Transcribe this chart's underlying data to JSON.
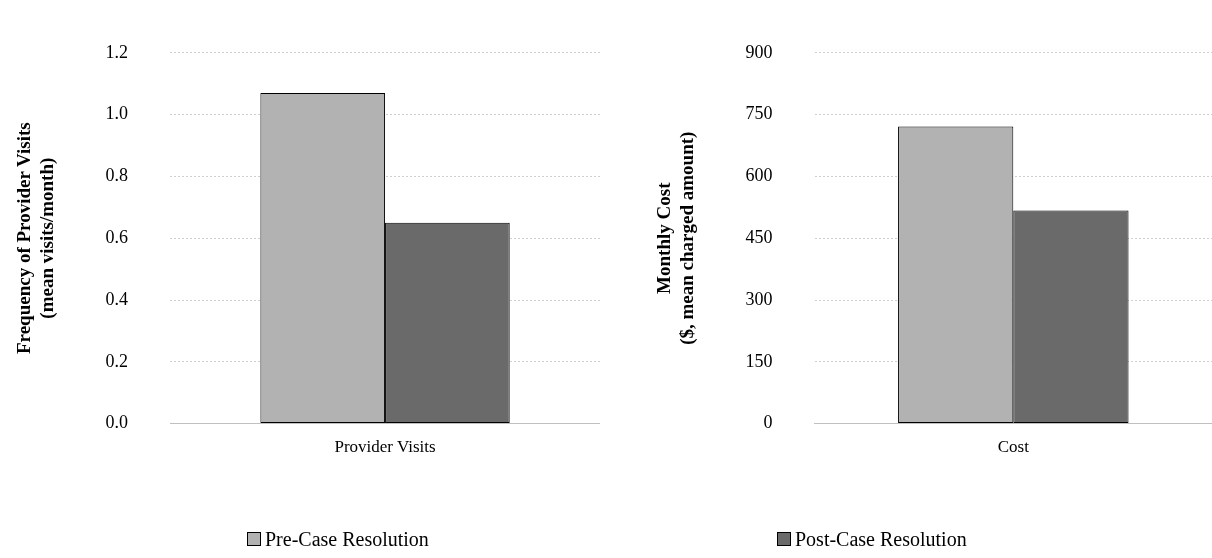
{
  "chart_data": [
    {
      "type": "bar",
      "ylabel": "Frequency of Provider Visits\n(mean visits/month)",
      "categories": [
        "Provider Visits"
      ],
      "series": [
        {
          "name": "Pre-Case Resolution",
          "color": "#b2b2b2",
          "values": [
            1.07
          ]
        },
        {
          "name": "Post-Case Resolution",
          "color": "#6a6a6a",
          "values": [
            0.65
          ]
        }
      ],
      "ylim": [
        0,
        1.2
      ],
      "yticks": [
        {
          "value": 0,
          "label": "0.0"
        },
        {
          "value": 0.2,
          "label": "0.2"
        },
        {
          "value": 0.4,
          "label": "0.4"
        },
        {
          "value": 0.6,
          "label": "0.6"
        },
        {
          "value": 0.8,
          "label": "0.8"
        },
        {
          "value": 1,
          "label": "1.0"
        },
        {
          "value": 1.2,
          "label": "1.2"
        }
      ],
      "grid": "y",
      "legend": "bottom"
    },
    {
      "type": "bar",
      "ylabel": "Monthly Cost\n($, mean charged amount)",
      "categories": [
        "Cost"
      ],
      "series": [
        {
          "color": "#b2b2b2",
          "values": [
            721
          ]
        },
        {
          "color": "#6a6a6a",
          "values": [
            517
          ]
        }
      ],
      "ylim": [
        0,
        900
      ],
      "yticks": [
        0,
        150,
        300,
        450,
        600,
        750,
        900
      ],
      "grid": "y"
    }
  ]
}
